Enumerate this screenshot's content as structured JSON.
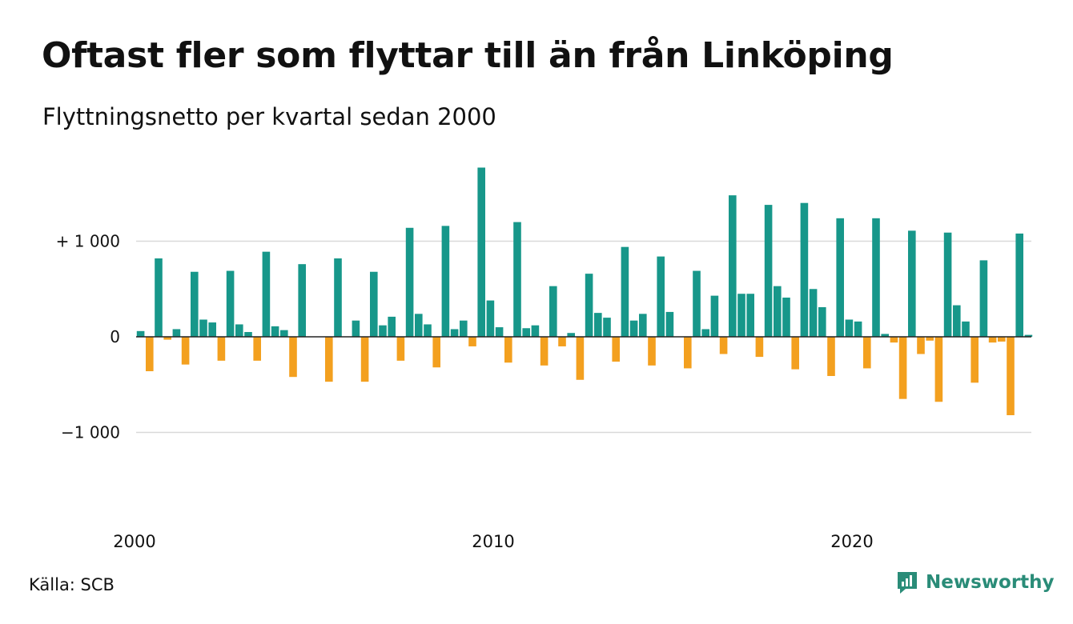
{
  "header": {
    "title": "Oftast fler som flyttar till än från Linköping",
    "subtitle": "Flyttningsnetto per kvartal sedan 2000"
  },
  "footer": {
    "source": "Källa: SCB",
    "brand": "Newsworthy"
  },
  "colors": {
    "positive": "#17978a",
    "negative": "#f3a01f",
    "grid": "#d9d9d9",
    "baseline": "#222222",
    "brand": "#2a8c78"
  },
  "chart_data": {
    "type": "bar",
    "title": "Oftast fler som flyttar till än från Linköping",
    "subtitle": "Flyttningsnetto per kvartal sedan 2000",
    "xlabel": "",
    "ylabel": "",
    "ylim": [
      -1500,
      1800
    ],
    "grid": true,
    "y_ticks": [
      {
        "value": 1000,
        "label": "+ 1 000"
      },
      {
        "value": 0,
        "label": "0"
      },
      {
        "value": -1000,
        "label": "−1 000"
      }
    ],
    "x_ticks": [
      {
        "value": 2000,
        "label": "2000"
      },
      {
        "value": 2010,
        "label": "2010"
      },
      {
        "value": 2020,
        "label": "2020"
      }
    ],
    "start_year": 2000,
    "periods_per_year": 4,
    "values": [
      60,
      -360,
      820,
      -30,
      80,
      -290,
      680,
      180,
      150,
      -250,
      690,
      130,
      50,
      -250,
      890,
      110,
      70,
      -420,
      760,
      0,
      0,
      -470,
      820,
      0,
      170,
      -470,
      680,
      120,
      210,
      -250,
      1140,
      240,
      130,
      -320,
      1160,
      80,
      170,
      -100,
      1770,
      380,
      100,
      -270,
      1200,
      90,
      120,
      -300,
      530,
      -100,
      40,
      -450,
      660,
      250,
      200,
      -260,
      940,
      170,
      240,
      -300,
      840,
      260,
      0,
      -330,
      690,
      80,
      430,
      -180,
      1480,
      450,
      450,
      -210,
      1380,
      530,
      410,
      -340,
      1400,
      500,
      310,
      -410,
      1240,
      180,
      160,
      -330,
      1240,
      30,
      -60,
      -650,
      1110,
      -180,
      -40,
      -680,
      1090,
      330,
      160,
      -480,
      800,
      -60,
      -50,
      -820,
      1080,
      20
    ]
  }
}
